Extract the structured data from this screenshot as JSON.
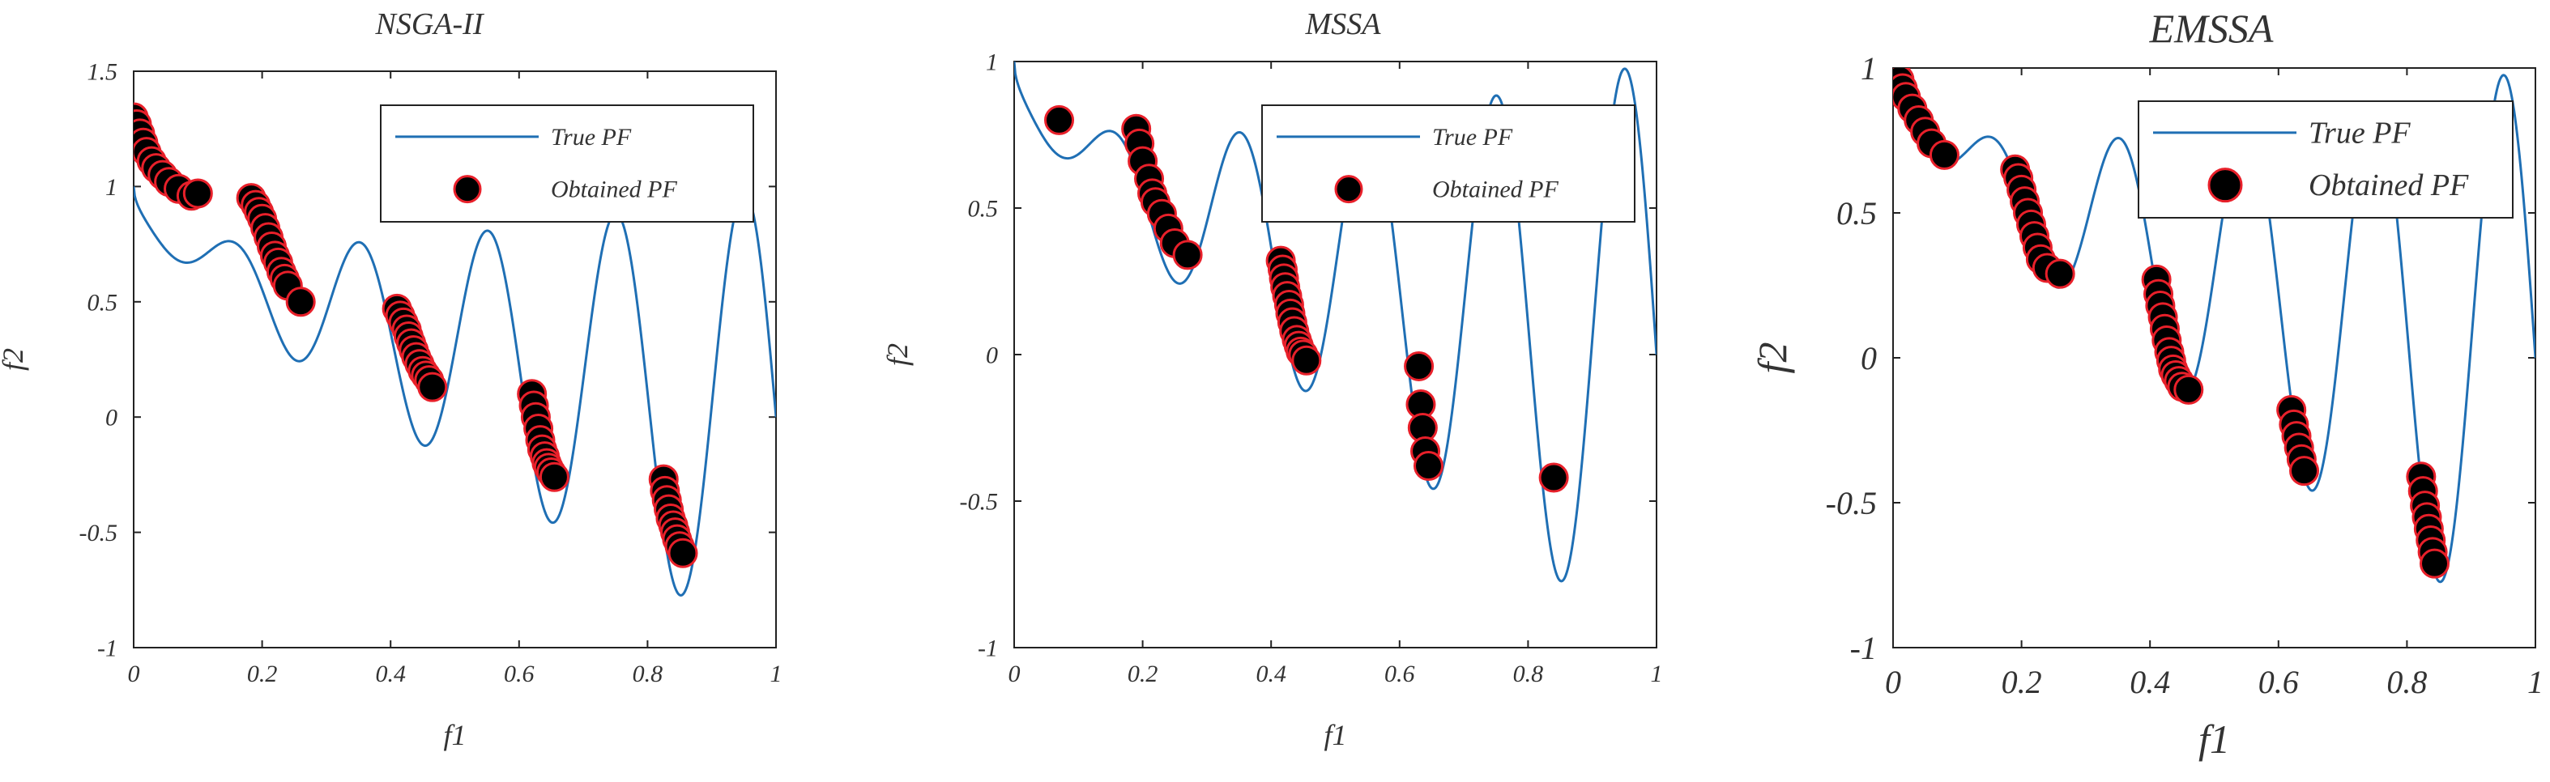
{
  "colors": {
    "true_pf_line": "#1f6fb4",
    "marker_fill": "#000000",
    "marker_edge": "#e8202a",
    "axis": "#222222",
    "text": "#333333"
  },
  "chart_data": [
    {
      "type": "scatter",
      "title": "NSGA-II",
      "xlabel": "f1",
      "ylabel": "f2",
      "xlim": [
        0,
        1
      ],
      "ylim": [
        -1,
        1.5
      ],
      "xticks": [
        0,
        0.2,
        0.4,
        0.6,
        0.8,
        1
      ],
      "xtick_labels": [
        "0",
        "0.2",
        "0.4",
        "0.6",
        "0.8",
        "1"
      ],
      "yticks": [
        -1,
        -0.5,
        0,
        0.5,
        1,
        1.5
      ],
      "ytick_labels": [
        "-1",
        "-0.5",
        "0",
        "0.5",
        "1",
        "1.5"
      ],
      "legend": {
        "position": "top-right",
        "entries": [
          "True PF",
          "Obtained PF"
        ]
      },
      "series": [
        {
          "name": "True PF",
          "kind": "line",
          "function": "f2 = 1 - sqrt(f1) - f1*sin(10*pi*f1)"
        },
        {
          "name": "Obtained PF",
          "kind": "markers",
          "x": [
            0.0,
            0.005,
            0.01,
            0.015,
            0.02,
            0.028,
            0.035,
            0.045,
            0.055,
            0.07,
            0.09,
            0.1,
            0.183,
            0.19,
            0.195,
            0.2,
            0.205,
            0.21,
            0.215,
            0.22,
            0.225,
            0.23,
            0.235,
            0.24,
            0.26,
            0.41,
            0.415,
            0.42,
            0.425,
            0.428,
            0.432,
            0.436,
            0.44,
            0.445,
            0.45,
            0.455,
            0.46,
            0.465,
            0.62,
            0.623,
            0.626,
            0.63,
            0.633,
            0.636,
            0.64,
            0.643,
            0.646,
            0.65,
            0.655,
            0.825,
            0.827,
            0.83,
            0.833,
            0.836,
            0.84,
            0.843,
            0.846,
            0.85,
            0.855
          ],
          "y": [
            1.3,
            1.27,
            1.23,
            1.19,
            1.15,
            1.11,
            1.08,
            1.05,
            1.02,
            0.99,
            0.96,
            0.97,
            0.95,
            0.92,
            0.89,
            0.86,
            0.82,
            0.78,
            0.74,
            0.7,
            0.67,
            0.63,
            0.6,
            0.57,
            0.5,
            0.47,
            0.44,
            0.41,
            0.38,
            0.35,
            0.32,
            0.29,
            0.26,
            0.23,
            0.2,
            0.18,
            0.16,
            0.13,
            0.1,
            0.05,
            0.0,
            -0.05,
            -0.1,
            -0.14,
            -0.17,
            -0.2,
            -0.22,
            -0.24,
            -0.26,
            -0.27,
            -0.32,
            -0.36,
            -0.4,
            -0.44,
            -0.47,
            -0.5,
            -0.53,
            -0.56,
            -0.59
          ]
        }
      ]
    },
    {
      "type": "scatter",
      "title": "MSSA",
      "xlabel": "f1",
      "ylabel": "f2",
      "xlim": [
        0,
        1
      ],
      "ylim": [
        -1,
        1
      ],
      "xticks": [
        0,
        0.2,
        0.4,
        0.6,
        0.8,
        1
      ],
      "xtick_labels": [
        "0",
        "0.2",
        "0.4",
        "0.6",
        "0.8",
        "1"
      ],
      "yticks": [
        -1,
        -0.5,
        0,
        0.5,
        1
      ],
      "ytick_labels": [
        "-1",
        "-0.5",
        "0",
        "0.5",
        "1"
      ],
      "legend": {
        "position": "top-right",
        "entries": [
          "True PF",
          "Obtained PF"
        ]
      },
      "series": [
        {
          "name": "True PF",
          "kind": "line",
          "function": "f2 = 1 - sqrt(f1) - f1*sin(10*pi*f1)"
        },
        {
          "name": "Obtained PF",
          "kind": "markers",
          "x": [
            0.07,
            0.19,
            0.195,
            0.2,
            0.21,
            0.215,
            0.22,
            0.23,
            0.24,
            0.25,
            0.27,
            0.415,
            0.418,
            0.42,
            0.422,
            0.425,
            0.428,
            0.43,
            0.433,
            0.436,
            0.44,
            0.443,
            0.446,
            0.45,
            0.455,
            0.63,
            0.633,
            0.636,
            0.64,
            0.645,
            0.84
          ],
          "y": [
            0.8,
            0.77,
            0.72,
            0.66,
            0.6,
            0.55,
            0.52,
            0.48,
            0.43,
            0.38,
            0.34,
            0.32,
            0.29,
            0.26,
            0.23,
            0.2,
            0.17,
            0.14,
            0.11,
            0.08,
            0.05,
            0.03,
            0.01,
            0.0,
            -0.02,
            -0.04,
            -0.17,
            -0.25,
            -0.33,
            -0.38,
            -0.42
          ]
        }
      ]
    },
    {
      "type": "scatter",
      "title": "EMSSA",
      "xlabel": "f1",
      "ylabel": "f2",
      "xlim": [
        0,
        1
      ],
      "ylim": [
        -1,
        1
      ],
      "xticks": [
        0,
        0.2,
        0.4,
        0.6,
        0.8,
        1
      ],
      "xtick_labels": [
        "0",
        "0.2",
        "0.4",
        "0.6",
        "0.8",
        "1"
      ],
      "yticks": [
        -1,
        -0.5,
        0,
        0.5,
        1
      ],
      "ytick_labels": [
        "-1",
        "-0.5",
        "0",
        "0.5",
        "1"
      ],
      "legend": {
        "position": "top-right",
        "entries": [
          "True PF",
          "Obtained PF"
        ]
      },
      "series": [
        {
          "name": "True PF",
          "kind": "line",
          "function": "f2 = 1 - sqrt(f1) - f1*sin(10*pi*f1)"
        },
        {
          "name": "Obtained PF",
          "kind": "markers",
          "x": [
            0.002,
            0.005,
            0.01,
            0.015,
            0.02,
            0.03,
            0.04,
            0.05,
            0.06,
            0.08,
            0.19,
            0.195,
            0.2,
            0.205,
            0.21,
            0.215,
            0.22,
            0.225,
            0.23,
            0.24,
            0.26,
            0.41,
            0.413,
            0.416,
            0.42,
            0.423,
            0.426,
            0.43,
            0.433,
            0.436,
            0.44,
            0.445,
            0.45,
            0.46,
            0.62,
            0.624,
            0.628,
            0.632,
            0.636,
            0.64,
            0.822,
            0.825,
            0.828,
            0.831,
            0.834,
            0.837,
            0.84,
            0.843
          ],
          "y": [
            1.0,
            0.98,
            0.96,
            0.93,
            0.9,
            0.86,
            0.82,
            0.78,
            0.74,
            0.7,
            0.65,
            0.62,
            0.58,
            0.54,
            0.5,
            0.46,
            0.42,
            0.38,
            0.34,
            0.31,
            0.29,
            0.27,
            0.22,
            0.18,
            0.14,
            0.1,
            0.06,
            0.02,
            -0.01,
            -0.04,
            -0.06,
            -0.08,
            -0.1,
            -0.11,
            -0.18,
            -0.23,
            -0.27,
            -0.31,
            -0.35,
            -0.39,
            -0.41,
            -0.46,
            -0.51,
            -0.55,
            -0.59,
            -0.63,
            -0.67,
            -0.71
          ]
        }
      ]
    }
  ]
}
